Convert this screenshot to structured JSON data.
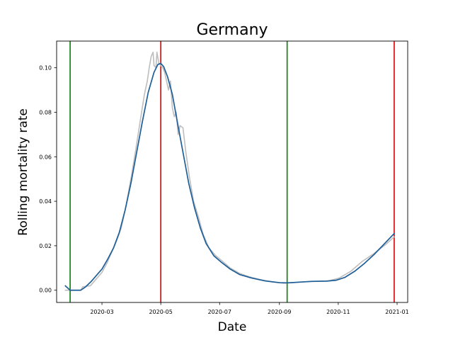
{
  "chart_data": {
    "type": "line",
    "title": "Germany",
    "xlabel": "Date",
    "ylabel": "Rolling mortality rate",
    "x_ticks": [
      "2020-03",
      "2020-05",
      "2020-07",
      "2020-09",
      "2020-11",
      "2021-01"
    ],
    "y_ticks": [
      "0.00",
      "0.02",
      "0.04",
      "0.06",
      "0.08",
      "0.10"
    ],
    "xlim": [
      "2020-01-14",
      "2021-01-12"
    ],
    "ylim": [
      -0.0055,
      0.112
    ],
    "grid": false,
    "colors": {
      "raw": "#bdbdbd",
      "smoothed": "#1f5f99",
      "start_marker": "#008000",
      "end_marker": "#d90000"
    },
    "vertical_lines": [
      {
        "date": "2020-01-28",
        "color": "#008000"
      },
      {
        "date": "2020-05-01",
        "color": "#d90000"
      },
      {
        "date": "2020-09-09",
        "color": "#008000"
      },
      {
        "date": "2020-12-29",
        "color": "#d90000"
      }
    ],
    "series": [
      {
        "role": "raw",
        "points": [
          [
            "2020-01-23",
            0.0
          ],
          [
            "2020-02-01",
            0.0
          ],
          [
            "2020-02-08",
            0.0
          ],
          [
            "2020-02-10",
            0.0015
          ],
          [
            "2020-02-14",
            0.0018
          ],
          [
            "2020-02-18",
            0.002
          ],
          [
            "2020-02-22",
            0.004
          ],
          [
            "2020-02-26",
            0.006
          ],
          [
            "2020-03-01",
            0.008
          ],
          [
            "2020-03-06",
            0.012
          ],
          [
            "2020-03-11",
            0.017
          ],
          [
            "2020-03-16",
            0.022
          ],
          [
            "2020-03-21",
            0.028
          ],
          [
            "2020-03-26",
            0.038
          ],
          [
            "2020-03-31",
            0.05
          ],
          [
            "2020-04-05",
            0.063
          ],
          [
            "2020-04-10",
            0.077
          ],
          [
            "2020-04-14",
            0.088
          ],
          [
            "2020-04-17",
            0.094
          ],
          [
            "2020-04-19",
            0.1
          ],
          [
            "2020-04-21",
            0.105
          ],
          [
            "2020-04-23",
            0.107
          ],
          [
            "2020-04-24",
            0.101
          ],
          [
            "2020-04-26",
            0.1
          ],
          [
            "2020-04-27",
            0.107
          ],
          [
            "2020-04-29",
            0.102
          ],
          [
            "2020-05-01",
            0.101
          ],
          [
            "2020-05-03",
            0.1
          ],
          [
            "2020-05-05",
            0.098
          ],
          [
            "2020-05-07",
            0.094
          ],
          [
            "2020-05-09",
            0.09
          ],
          [
            "2020-05-11",
            0.094
          ],
          [
            "2020-05-13",
            0.082
          ],
          [
            "2020-05-15",
            0.078
          ],
          [
            "2020-05-17",
            0.08
          ],
          [
            "2020-05-19",
            0.07
          ],
          [
            "2020-05-21",
            0.074
          ],
          [
            "2020-05-24",
            0.073
          ],
          [
            "2020-05-27",
            0.062
          ],
          [
            "2020-05-31",
            0.05
          ],
          [
            "2020-06-04",
            0.04
          ],
          [
            "2020-06-09",
            0.033
          ],
          [
            "2020-06-14",
            0.025
          ],
          [
            "2020-06-20",
            0.019
          ],
          [
            "2020-06-27",
            0.0155
          ],
          [
            "2020-07-04",
            0.013
          ],
          [
            "2020-07-12",
            0.01
          ],
          [
            "2020-07-22",
            0.0075
          ],
          [
            "2020-08-01",
            0.006
          ],
          [
            "2020-08-12",
            0.0048
          ],
          [
            "2020-08-24",
            0.0038
          ],
          [
            "2020-09-05",
            0.0032
          ],
          [
            "2020-09-15",
            0.0034
          ],
          [
            "2020-09-28",
            0.0038
          ],
          [
            "2020-10-10",
            0.004
          ],
          [
            "2020-10-22",
            0.0042
          ],
          [
            "2020-11-02",
            0.0055
          ],
          [
            "2020-11-14",
            0.0085
          ],
          [
            "2020-11-26",
            0.013
          ],
          [
            "2020-12-08",
            0.0165
          ],
          [
            "2020-12-20",
            0.0205
          ],
          [
            "2020-12-29",
            0.024
          ]
        ]
      },
      {
        "role": "smoothed",
        "points": [
          [
            "2020-01-23",
            0.002
          ],
          [
            "2020-01-28",
            0.0
          ],
          [
            "2020-02-08",
            0.0
          ],
          [
            "2020-02-13",
            0.0015
          ],
          [
            "2020-02-19",
            0.004
          ],
          [
            "2020-02-25",
            0.007
          ],
          [
            "2020-03-01",
            0.0095
          ],
          [
            "2020-03-07",
            0.014
          ],
          [
            "2020-03-13",
            0.019
          ],
          [
            "2020-03-19",
            0.026
          ],
          [
            "2020-03-25",
            0.036
          ],
          [
            "2020-03-31",
            0.048
          ],
          [
            "2020-04-06",
            0.062
          ],
          [
            "2020-04-12",
            0.076
          ],
          [
            "2020-04-18",
            0.089
          ],
          [
            "2020-04-24",
            0.098
          ],
          [
            "2020-04-28",
            0.1015
          ],
          [
            "2020-05-01",
            0.102
          ],
          [
            "2020-05-04",
            0.1005
          ],
          [
            "2020-05-08",
            0.096
          ],
          [
            "2020-05-13",
            0.088
          ],
          [
            "2020-05-18",
            0.076
          ],
          [
            "2020-05-24",
            0.062
          ],
          [
            "2020-05-30",
            0.048
          ],
          [
            "2020-06-05",
            0.037
          ],
          [
            "2020-06-11",
            0.028
          ],
          [
            "2020-06-17",
            0.021
          ],
          [
            "2020-06-25",
            0.0155
          ],
          [
            "2020-07-03",
            0.0125
          ],
          [
            "2020-07-12",
            0.0095
          ],
          [
            "2020-07-22",
            0.007
          ],
          [
            "2020-08-03",
            0.0055
          ],
          [
            "2020-08-17",
            0.0042
          ],
          [
            "2020-09-01",
            0.0034
          ],
          [
            "2020-09-09",
            0.0033
          ],
          [
            "2020-09-20",
            0.0036
          ],
          [
            "2020-10-05",
            0.004
          ],
          [
            "2020-10-20",
            0.0041
          ],
          [
            "2020-10-30",
            0.0045
          ],
          [
            "2020-11-08",
            0.0058
          ],
          [
            "2020-11-18",
            0.0085
          ],
          [
            "2020-11-28",
            0.012
          ],
          [
            "2020-12-08",
            0.016
          ],
          [
            "2020-12-18",
            0.0205
          ],
          [
            "2020-12-29",
            0.0255
          ]
        ]
      }
    ]
  }
}
